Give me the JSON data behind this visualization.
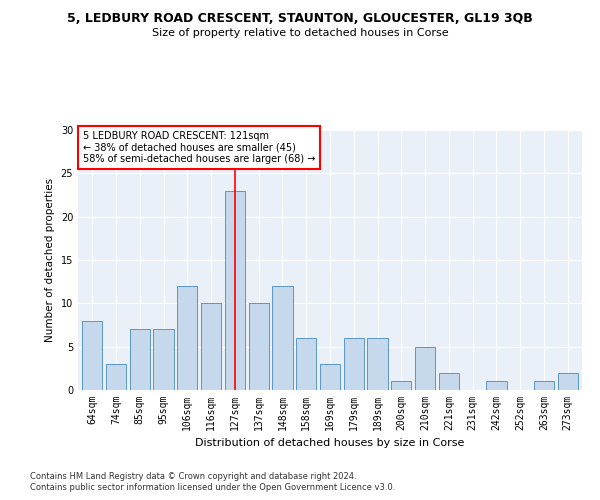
{
  "title1": "5, LEDBURY ROAD CRESCENT, STAUNTON, GLOUCESTER, GL19 3QB",
  "title2": "Size of property relative to detached houses in Corse",
  "xlabel": "Distribution of detached houses by size in Corse",
  "ylabel": "Number of detached properties",
  "categories": [
    "64sqm",
    "74sqm",
    "85sqm",
    "95sqm",
    "106sqm",
    "116sqm",
    "127sqm",
    "137sqm",
    "148sqm",
    "158sqm",
    "169sqm",
    "179sqm",
    "189sqm",
    "200sqm",
    "210sqm",
    "221sqm",
    "231sqm",
    "242sqm",
    "252sqm",
    "263sqm",
    "273sqm"
  ],
  "values": [
    8,
    3,
    7,
    7,
    12,
    10,
    23,
    10,
    12,
    6,
    3,
    6,
    6,
    1,
    5,
    2,
    0,
    1,
    0,
    1,
    2
  ],
  "bar_color": "#c6d9ec",
  "bar_edge_color": "#5a96c8",
  "highlight_index": 6,
  "property_label": "5 LEDBURY ROAD CRESCENT: 121sqm",
  "annotation_line1": "← 38% of detached houses are smaller (45)",
  "annotation_line2": "58% of semi-detached houses are larger (68) →",
  "ylim": [
    0,
    30
  ],
  "yticks": [
    0,
    5,
    10,
    15,
    20,
    25,
    30
  ],
  "footer1": "Contains HM Land Registry data © Crown copyright and database right 2024.",
  "footer2": "Contains public sector information licensed under the Open Government Licence v3.0.",
  "plot_bg_color": "#eaf0f8"
}
